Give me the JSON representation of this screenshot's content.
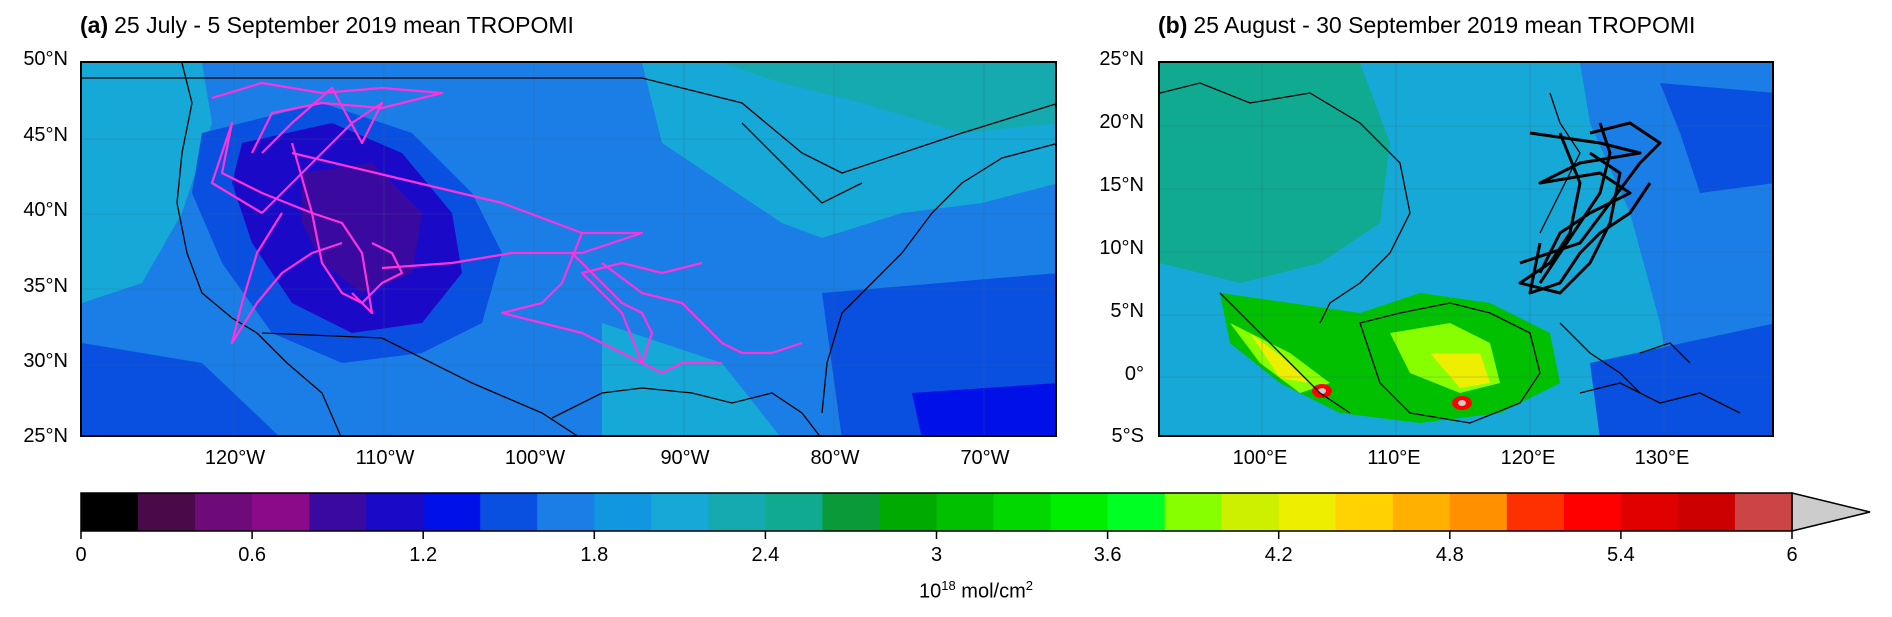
{
  "panel_a": {
    "letter": "(a)",
    "title": "25 July - 5 September 2019 mean TROPOMI",
    "lat_labels": [
      "50°N",
      "45°N",
      "40°N",
      "35°N",
      "30°N",
      "25°N"
    ],
    "lon_labels": [
      "120°W",
      "110°W",
      "100°W",
      "90°W",
      "80°W",
      "70°W"
    ],
    "flight_track_color": "#ff33dd"
  },
  "panel_b": {
    "letter": "(b)",
    "title": "25 August - 30 September 2019 mean TROPOMI",
    "lat_labels": [
      "25°N",
      "20°N",
      "15°N",
      "10°N",
      "5°N",
      "0°",
      "5°S"
    ],
    "lon_labels": [
      "100°E",
      "110°E",
      "120°E",
      "130°E"
    ],
    "flight_track_color": "#000000"
  },
  "colorbar": {
    "ticks": [
      "0",
      "0.6",
      "1.2",
      "1.8",
      "2.4",
      "3",
      "3.6",
      "4.2",
      "4.8",
      "5.4",
      "6"
    ],
    "unit_base": "10",
    "unit_exp": "18",
    "unit_rest": " mol/cm",
    "unit_sq": "2",
    "colors": [
      "#000000",
      "#4a0a4a",
      "#6e0a7a",
      "#8a0a8a",
      "#3a0aa0",
      "#1a0ac8",
      "#0010e8",
      "#0a50e0",
      "#1a7ee6",
      "#1196e0",
      "#16a8d6",
      "#14aab0",
      "#10aa90",
      "#0a9a3a",
      "#00aa00",
      "#00c000",
      "#00d800",
      "#00ee00",
      "#00ff22",
      "#88ff00",
      "#ccf000",
      "#eeee00",
      "#ffd200",
      "#ffb000",
      "#ff9000",
      "#ff3000",
      "#ff0000",
      "#e00000",
      "#cc0000",
      "#cc4444",
      "#cccccc"
    ]
  }
}
